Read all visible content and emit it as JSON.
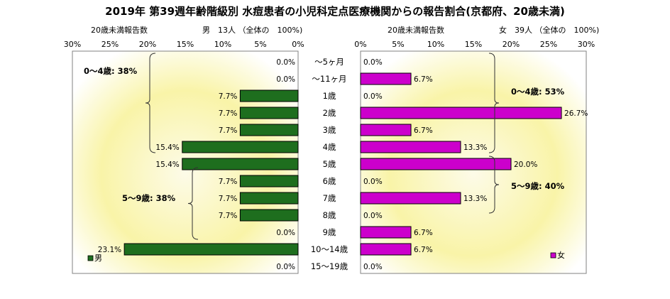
{
  "title": "2019年 第39週年齢階級別 水痘患者の小児科定点医療機関からの報告割合(京都府、20歳未満)",
  "chart_data": [
    {
      "type": "bar",
      "orientation": "horizontal",
      "direction": "right-to-left",
      "header_left": "20歳未満報告数",
      "header_right": "男　13人 （全体の　100%)",
      "categories": [
        "～5ヶ月",
        "～11ヶ月",
        "1歳",
        "2歳",
        "3歳",
        "4歳",
        "5歳",
        "6歳",
        "7歳",
        "8歳",
        "9歳",
        "10～14歳",
        "15～19歳"
      ],
      "series": [
        {
          "name": "男",
          "color": "#1e6e1e",
          "values": [
            0.0,
            0.0,
            7.7,
            7.7,
            7.7,
            15.4,
            15.4,
            7.7,
            7.7,
            7.7,
            0.0,
            23.1,
            0.0
          ],
          "labels": [
            "0.0%",
            "0.0%",
            "7.7%",
            "7.7%",
            "7.7%",
            "15.4%",
            "15.4%",
            "7.7%",
            "7.7%",
            "7.7%",
            "0.0%",
            "23.1%",
            "0.0%"
          ]
        }
      ],
      "xlim": [
        0,
        30
      ],
      "xticks": [
        "30%",
        "25%",
        "20%",
        "15%",
        "10%",
        "5%",
        "0%"
      ],
      "annotations": [
        "0～4歳: 38%",
        "5～9歳: 38%"
      ],
      "legend": "bottom-left"
    },
    {
      "type": "bar",
      "orientation": "horizontal",
      "direction": "left-to-right",
      "header_left": "20歳未満報告数",
      "header_right": "女　39人 （全体の　100%)",
      "categories": [
        "～5ヶ月",
        "～11ヶ月",
        "1歳",
        "2歳",
        "3歳",
        "4歳",
        "5歳",
        "6歳",
        "7歳",
        "8歳",
        "9歳",
        "10～14歳",
        "15～19歳"
      ],
      "series": [
        {
          "name": "女",
          "color": "#cc00cc",
          "values": [
            0.0,
            6.7,
            0.0,
            26.7,
            6.7,
            13.3,
            20.0,
            0.0,
            13.3,
            0.0,
            6.7,
            6.7,
            0.0
          ],
          "labels": [
            "0.0%",
            "6.7%",
            "0.0%",
            "26.7%",
            "6.7%",
            "13.3%",
            "20.0%",
            "0.0%",
            "13.3%",
            "0.0%",
            "6.7%",
            "6.7%",
            "0.0%"
          ]
        }
      ],
      "xlim": [
        0,
        30
      ],
      "xticks": [
        "0%",
        "5%",
        "10%",
        "15%",
        "20%",
        "25%",
        "30%"
      ],
      "annotations": [
        "0～4歳: 53%",
        "5～9歳: 40%"
      ],
      "legend": "bottom-right"
    }
  ]
}
